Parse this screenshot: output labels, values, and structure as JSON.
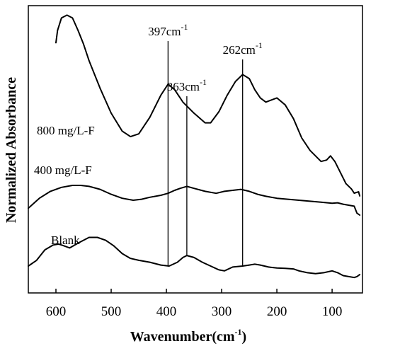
{
  "chart_data": {
    "type": "line",
    "title": "",
    "xlabel": "Wavenumber(cm-1)",
    "xlabel_main": "Wavenumber(cm",
    "xlabel_sup": "-1",
    "xlabel_tail": ")",
    "ylabel": "Normalized Absorbance",
    "xlim": [
      650,
      45
    ],
    "x_reversed": true,
    "y_ticks_shown": false,
    "grid": false,
    "legend": "inline labels",
    "xticks": [
      600,
      500,
      400,
      300,
      200,
      100
    ],
    "xtick_labels": [
      "600",
      "500",
      "400",
      "300",
      "200",
      "100"
    ],
    "series": [
      {
        "name": "800 mg/L-F",
        "x": [
          600,
          597,
          590,
          580,
          570,
          560,
          550,
          540,
          520,
          500,
          480,
          465,
          450,
          430,
          410,
          397,
          385,
          370,
          350,
          330,
          320,
          305,
          290,
          275,
          262,
          250,
          240,
          230,
          220,
          200,
          185,
          170,
          155,
          140,
          120,
          110,
          103,
          95,
          85,
          75,
          65,
          60,
          52,
          50
        ],
        "y": [
          6.45,
          6.9,
          7.35,
          7.45,
          7.35,
          6.9,
          6.4,
          5.8,
          4.8,
          3.9,
          3.25,
          3.05,
          3.15,
          3.75,
          4.55,
          4.95,
          4.75,
          4.3,
          3.9,
          3.55,
          3.55,
          3.95,
          4.55,
          5.05,
          5.3,
          5.15,
          4.75,
          4.45,
          4.3,
          4.45,
          4.2,
          3.7,
          3.0,
          2.55,
          2.15,
          2.2,
          2.35,
          2.15,
          1.75,
          1.35,
          1.15,
          1.0,
          1.05,
          0.9
        ]
      },
      {
        "name": "400 mg/L-F",
        "x": [
          650,
          630,
          610,
          590,
          570,
          555,
          540,
          520,
          500,
          480,
          460,
          445,
          430,
          410,
          397,
          385,
          375,
          363,
          350,
          330,
          310,
          295,
          280,
          265,
          250,
          235,
          220,
          200,
          180,
          160,
          140,
          120,
          100,
          90,
          80,
          70,
          60,
          55,
          50
        ],
        "y": [
          0.85,
          1.35,
          1.7,
          1.9,
          2.0,
          2.0,
          1.95,
          1.8,
          1.55,
          1.35,
          1.25,
          1.3,
          1.4,
          1.5,
          1.6,
          1.75,
          1.85,
          1.95,
          1.85,
          1.7,
          1.6,
          1.7,
          1.75,
          1.8,
          1.7,
          1.55,
          1.45,
          1.35,
          1.3,
          1.25,
          1.2,
          1.15,
          1.1,
          1.12,
          1.05,
          1.0,
          0.95,
          0.6,
          0.5
        ]
      },
      {
        "name": "Blank",
        "x": [
          650,
          635,
          620,
          605,
          595,
          585,
          575,
          560,
          540,
          525,
          510,
          495,
          480,
          465,
          450,
          430,
          410,
          395,
          380,
          370,
          363,
          350,
          335,
          320,
          305,
          295,
          280,
          262,
          250,
          240,
          230,
          215,
          200,
          185,
          170,
          160,
          145,
          130,
          115,
          100,
          90,
          80,
          70,
          60,
          55,
          50
        ],
        "y": [
          0.0,
          0.3,
          0.85,
          1.1,
          1.15,
          1.05,
          0.95,
          1.2,
          1.5,
          1.5,
          1.35,
          1.05,
          0.65,
          0.4,
          0.3,
          0.2,
          0.05,
          0.0,
          0.2,
          0.45,
          0.55,
          0.45,
          0.2,
          0.0,
          -0.2,
          -0.25,
          -0.05,
          0.0,
          0.05,
          0.1,
          0.05,
          -0.05,
          -0.1,
          -0.12,
          -0.15,
          -0.25,
          -0.35,
          -0.4,
          -0.35,
          -0.25,
          -0.35,
          -0.5,
          -0.55,
          -0.6,
          -0.55,
          -0.45
        ]
      }
    ],
    "annotations": [
      {
        "label_main": "397cm",
        "label_sup": "-1",
        "x": 397,
        "series": "800 mg/L-F"
      },
      {
        "label_main": "363cm",
        "label_sup": "-1",
        "x": 363,
        "series": "400 mg/L-F"
      },
      {
        "label_main": "262cm",
        "label_sup": "-1",
        "x": 262,
        "series": "800 mg/L-F"
      }
    ]
  }
}
